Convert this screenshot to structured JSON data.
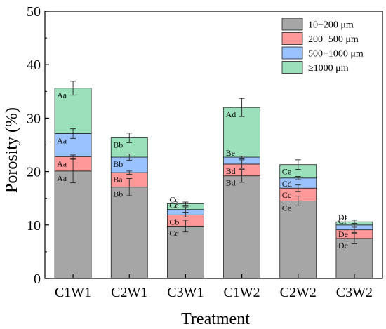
{
  "chart_data": {
    "type": "bar",
    "stacked": true,
    "xlabel": "Treatment",
    "ylabel": "Porosity (%)",
    "ylim": [
      0,
      50
    ],
    "yticks": [
      0,
      10,
      20,
      30,
      40,
      50
    ],
    "categories": [
      "C1W1",
      "C2W1",
      "C3W1",
      "C1W2",
      "C2W2",
      "C3W2"
    ],
    "series": [
      {
        "name": "10−200 μm",
        "color": "#a6a6a6",
        "values": [
          20.1,
          17.1,
          9.8,
          19.2,
          14.5,
          7.5
        ],
        "errors": [
          2.2,
          1.6,
          1.1,
          1.2,
          0.9,
          1.0
        ],
        "letters": [
          "Aa",
          "Bb",
          "Cc",
          "Bd",
          "Ce",
          "De"
        ]
      },
      {
        "name": "200−500 μm",
        "color": "#ff9999",
        "values": [
          2.7,
          2.7,
          2.1,
          2.2,
          2.4,
          1.6
        ],
        "errors": [
          0.3,
          0.3,
          0.4,
          0.8,
          0.6,
          0.5
        ],
        "letters": [
          "Aa",
          "Ba",
          "Cb",
          "Bd",
          "Cc",
          "De"
        ]
      },
      {
        "name": "500−1000 μm",
        "color": "#99c2ff",
        "values": [
          4.3,
          2.9,
          1.0,
          1.3,
          1.9,
          0.9
        ],
        "errors": [
          0.9,
          0.6,
          0.5,
          0.2,
          0.3,
          0.3
        ],
        "letters": [
          "Aa",
          "Bb",
          "Ce",
          "Be",
          "Cd",
          "Cf"
        ]
      },
      {
        "name": "≥1000 μm",
        "color": "#99e0bb",
        "values": [
          8.5,
          3.6,
          1.1,
          9.3,
          2.5,
          0.6
        ],
        "errors": [
          1.3,
          0.9,
          0.3,
          1.7,
          0.9,
          0.3
        ],
        "letters": [
          "Aa",
          "Bb",
          "Cc",
          "Ad",
          "Ce",
          "Df"
        ]
      }
    ],
    "legend_position": "top-right",
    "grid": false
  }
}
